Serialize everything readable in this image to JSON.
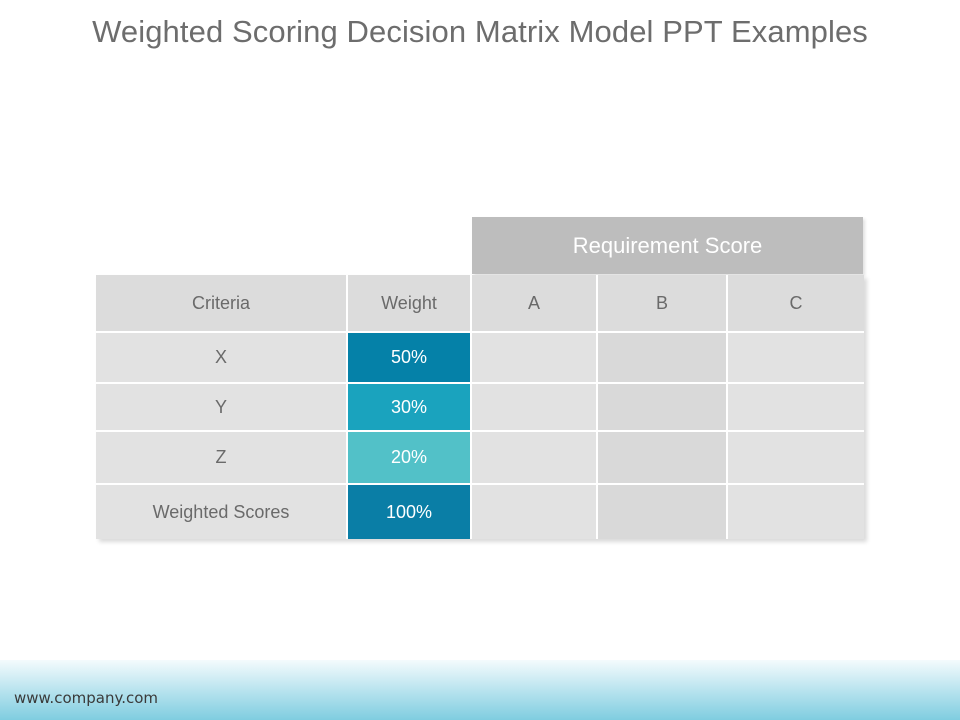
{
  "slide": {
    "title": "Weighted Scoring Decision Matrix Model PPT Examples",
    "footer": "www.company.com"
  },
  "matrix": {
    "group_header": "Requirement Score",
    "columns": [
      "Criteria",
      "Weight",
      "A",
      "B",
      "C"
    ],
    "rows": [
      {
        "criteria": "X",
        "weight": "50%",
        "weight_color": "#0581a8",
        "a": "",
        "b": "",
        "c": ""
      },
      {
        "criteria": "Y",
        "weight": "30%",
        "weight_color": "#1aa3be",
        "a": "",
        "b": "",
        "c": ""
      },
      {
        "criteria": "Z",
        "weight": "20%",
        "weight_color": "#52c1c8",
        "a": "",
        "b": "",
        "c": ""
      },
      {
        "criteria": "Weighted Scores",
        "weight": "100%",
        "weight_color": "#0a7ea6",
        "a": "",
        "b": "",
        "c": ""
      }
    ]
  },
  "colors": {
    "header_band": "#bdbdbd",
    "cell_bg": "#e2e2e2",
    "title_text": "#6d6d6d"
  }
}
